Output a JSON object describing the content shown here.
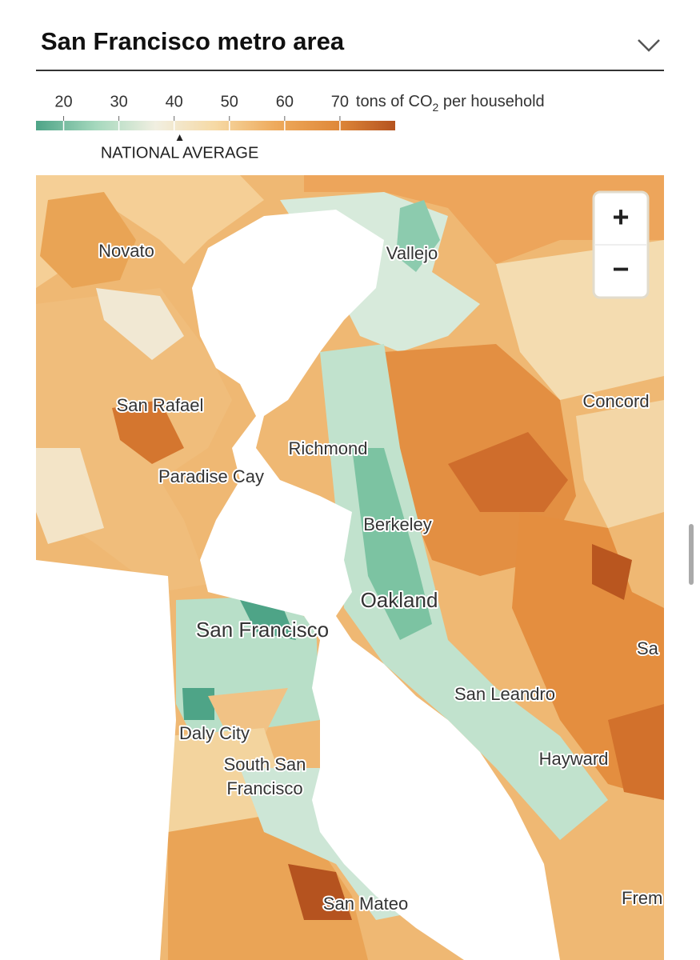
{
  "header": {
    "title": "San Francisco metro area"
  },
  "legend": {
    "range": [
      15,
      80
    ],
    "ticks": [
      20,
      30,
      40,
      50,
      60,
      70
    ],
    "unit": {
      "prefix": "tons of CO",
      "subscript": "2",
      "suffix": " per household"
    },
    "colors": [
      "#4ea487",
      "#a5d8bd",
      "#f1efe1",
      "#f6d9a4",
      "#eeaa5c",
      "#e08a3b",
      "#b5531f"
    ],
    "national_average": {
      "label": "NATIONAL AVERAGE",
      "value": 41
    }
  },
  "map": {
    "places": [
      "Novato",
      "Vallejo",
      "San Rafael",
      "Concord",
      "Richmond",
      "Paradise Cay",
      "Berkeley",
      "Oakland",
      "San Francisco",
      "Sa",
      "San Leandro",
      "Daly City",
      "Hayward",
      "South San",
      "Francisco",
      "San Mateo",
      "Frem"
    ],
    "zoom": {
      "in": "+",
      "out": "−"
    }
  }
}
